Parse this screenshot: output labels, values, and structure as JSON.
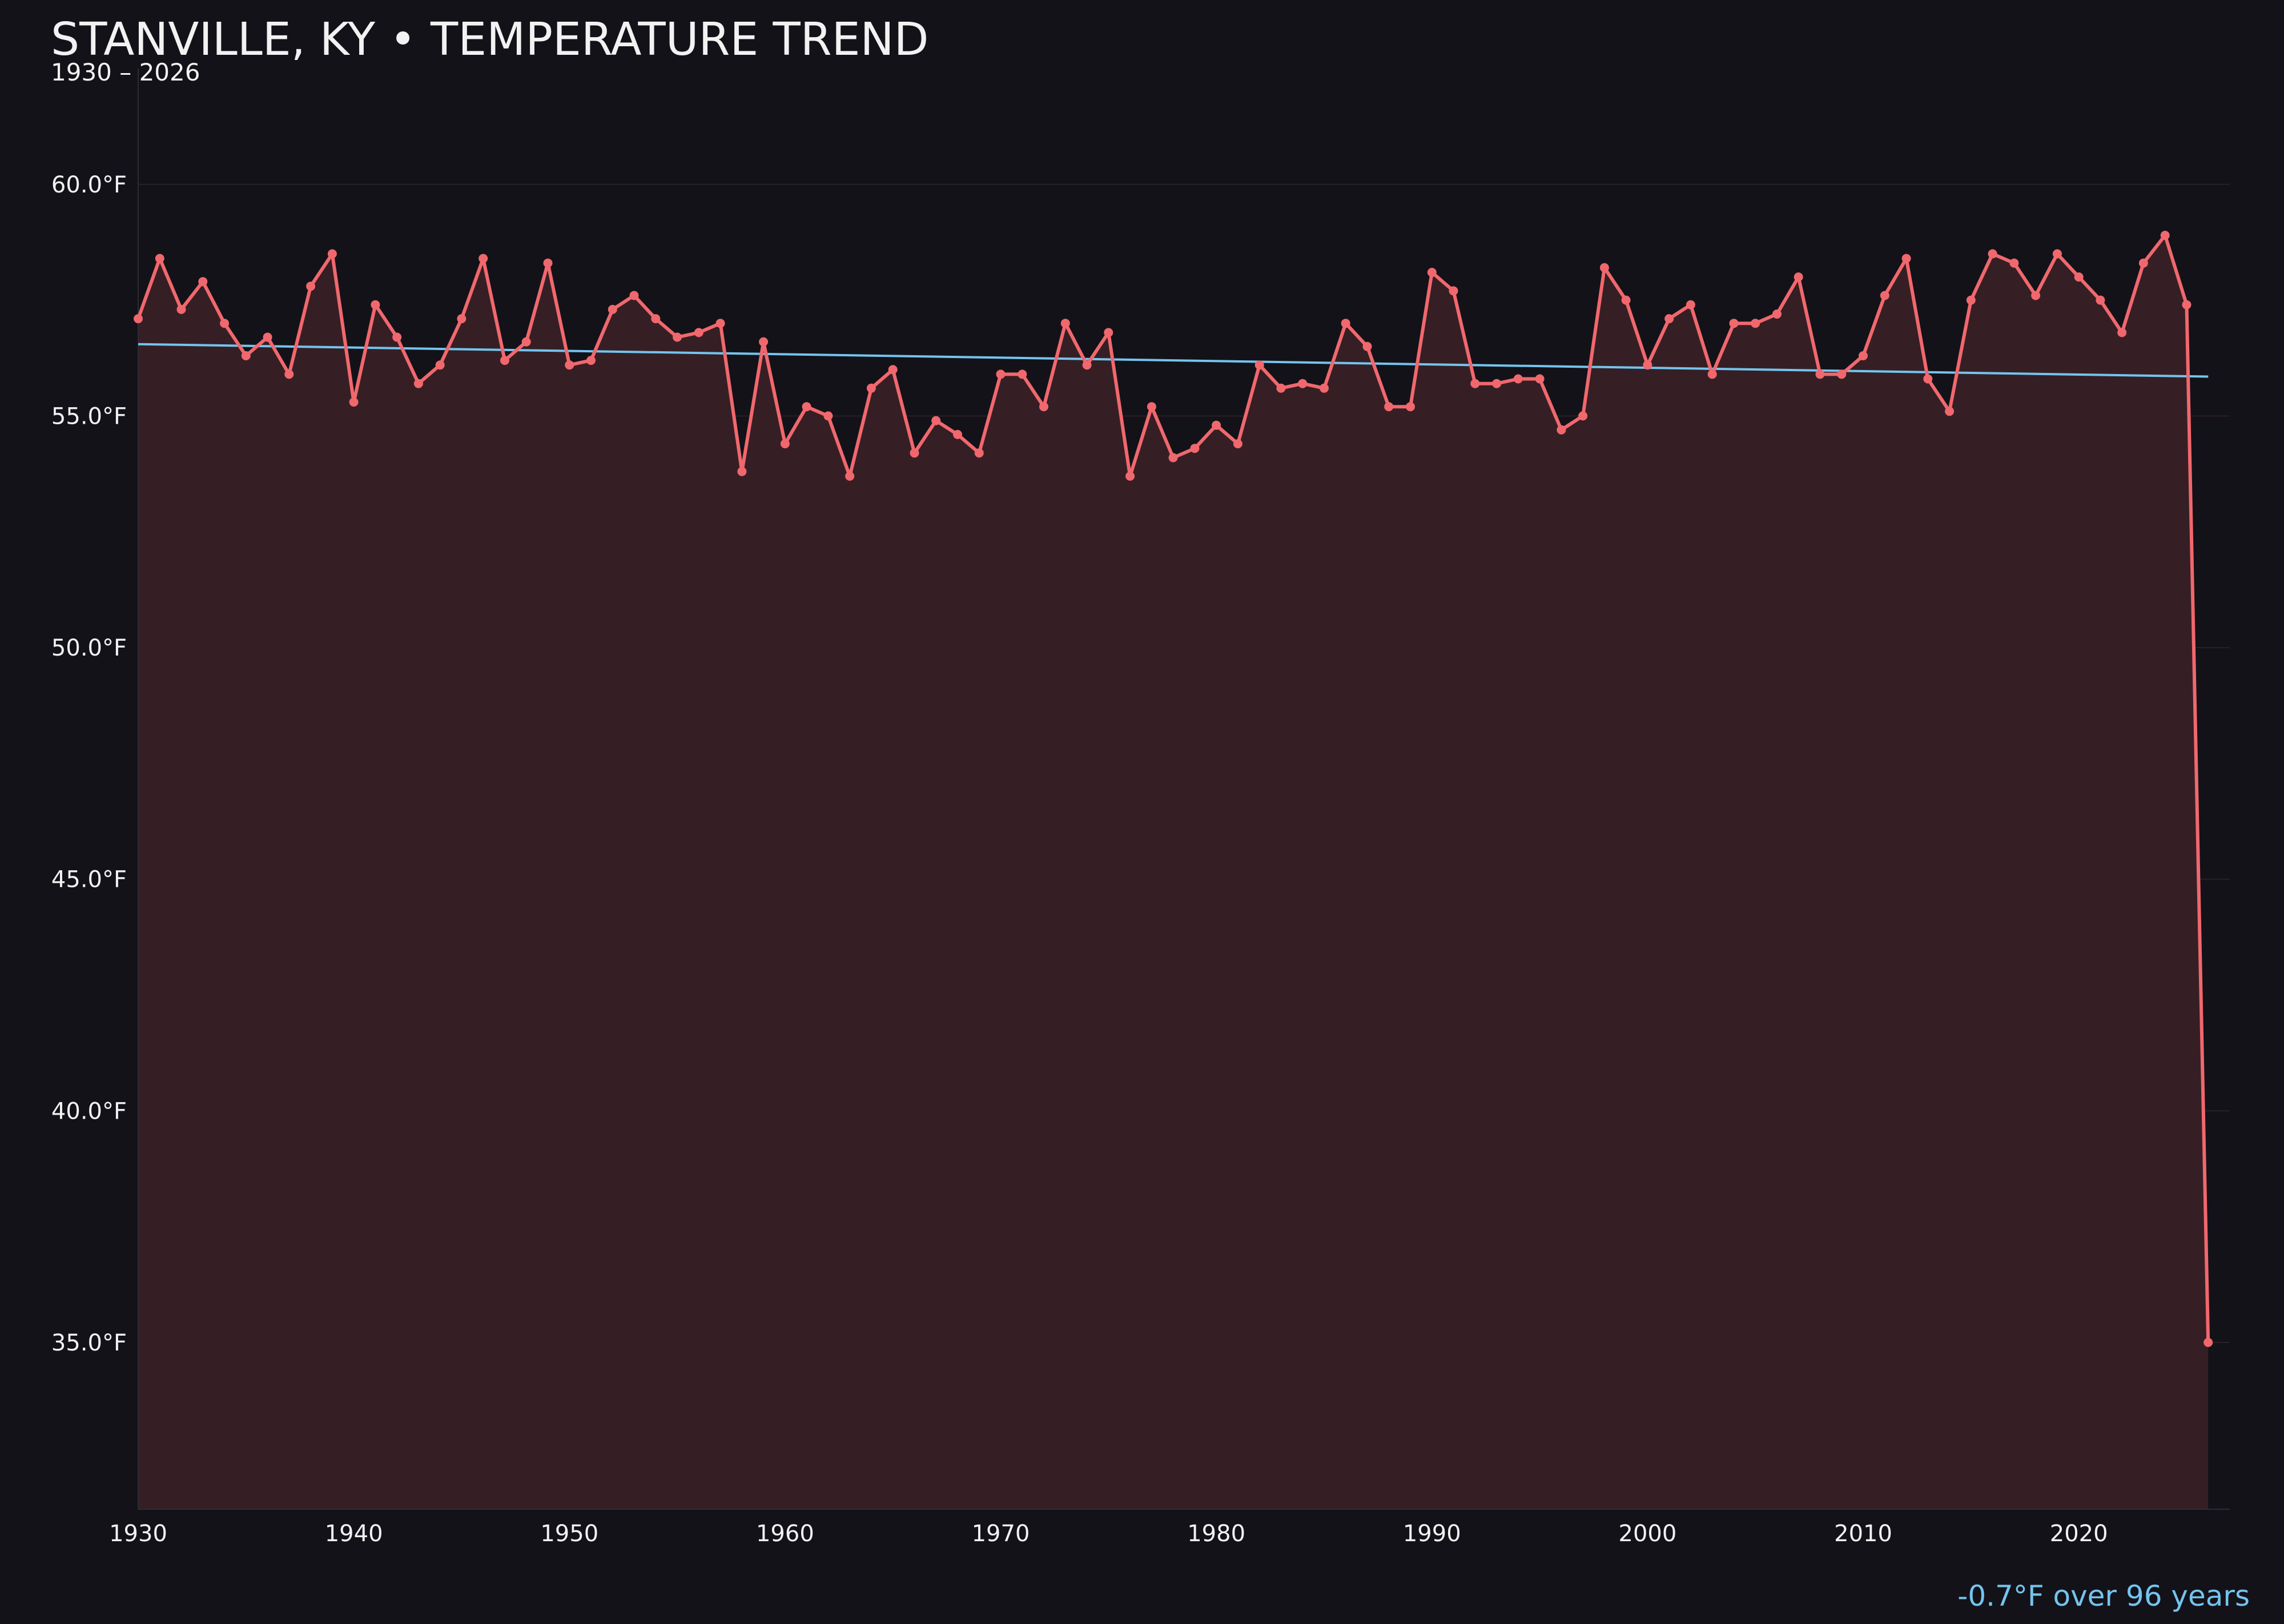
{
  "header": {
    "title": "STANVILLE, KY • TEMPERATURE TREND",
    "subtitle": "1930 – 2026"
  },
  "footer": {
    "trend_text": "-0.7°F over 96 years"
  },
  "colors": {
    "background": "#131219",
    "series": "#f0686d",
    "area_fill": "#351f25",
    "trend_line": "#74c4ee",
    "grid": "#2a2025",
    "text": "#f2f2f2"
  },
  "chart_data": {
    "type": "line",
    "title": "STANVILLE, KY • TEMPERATURE TREND",
    "subtitle": "1930 – 2026",
    "xlabel": "",
    "ylabel": "",
    "xlim": [
      1930,
      2027
    ],
    "ylim": [
      31.4,
      62.5
    ],
    "x_ticks": [
      1930,
      1940,
      1950,
      1960,
      1970,
      1980,
      1990,
      2000,
      2010,
      2020
    ],
    "y_ticks": [
      {
        "value": 35,
        "label": "35.0°F"
      },
      {
        "value": 40,
        "label": "40.0°F"
      },
      {
        "value": 45,
        "label": "45.0°F"
      },
      {
        "value": 50,
        "label": "50.0°F"
      },
      {
        "value": 55,
        "label": "55.0°F"
      },
      {
        "value": 60,
        "label": "60.0°F"
      }
    ],
    "grid": "horizontal",
    "area_fill": true,
    "series": [
      {
        "x": [
          1930,
          1931,
          1932,
          1933,
          1934,
          1935,
          1936,
          1937,
          1938,
          1939,
          1940,
          1941,
          1942,
          1943,
          1944,
          1945,
          1946,
          1947,
          1948,
          1949,
          1950,
          1951,
          1952,
          1953,
          1954,
          1955,
          1956,
          1957,
          1958,
          1959,
          1960,
          1961,
          1962,
          1963,
          1964,
          1965,
          1966,
          1967,
          1968,
          1969,
          1970,
          1971,
          1972,
          1973,
          1974,
          1975,
          1976,
          1977,
          1978,
          1979,
          1980,
          1981,
          1982,
          1983,
          1984,
          1985,
          1986,
          1987,
          1988,
          1989,
          1990,
          1991,
          1992,
          1993,
          1994,
          1995,
          1996,
          1997,
          1998,
          1999,
          2000,
          2001,
          2002,
          2003,
          2004,
          2005,
          2006,
          2007,
          2008,
          2009,
          2010,
          2011,
          2012,
          2013,
          2014,
          2015,
          2016,
          2017,
          2018,
          2019,
          2020,
          2021,
          2022,
          2023,
          2024,
          2025,
          2026
        ],
        "values": [
          57.1,
          58.4,
          57.3,
          57.9,
          57.0,
          56.3,
          56.7,
          55.9,
          57.8,
          58.5,
          55.3,
          57.4,
          56.7,
          55.7,
          56.1,
          57.1,
          58.4,
          56.2,
          56.6,
          58.3,
          56.1,
          56.2,
          57.3,
          57.6,
          57.1,
          56.7,
          56.8,
          57.0,
          53.8,
          56.6,
          54.4,
          55.2,
          55.0,
          53.7,
          55.6,
          56.0,
          54.2,
          54.9,
          54.6,
          54.2,
          55.9,
          55.9,
          55.2,
          57.0,
          56.1,
          56.8,
          53.7,
          55.2,
          54.1,
          54.3,
          54.8,
          54.4,
          56.1,
          55.6,
          55.7,
          55.6,
          57.0,
          56.5,
          55.2,
          55.2,
          58.1,
          57.7,
          55.7,
          55.7,
          55.8,
          55.8,
          54.7,
          55.0,
          58.2,
          57.5,
          56.1,
          57.1,
          57.4,
          55.9,
          57.0,
          57.0,
          57.2,
          58.0,
          55.9,
          55.9,
          56.3,
          57.6,
          58.4,
          55.8,
          55.1,
          57.5,
          58.5,
          58.3,
          57.6,
          58.5,
          58.0,
          57.5,
          56.8,
          58.3,
          58.9,
          57.4,
          35.0
        ]
      }
    ],
    "trend": {
      "x": [
        1930,
        2026
      ],
      "values": [
        56.55,
        55.85
      ],
      "label": "-0.7°F over 96 years"
    }
  }
}
